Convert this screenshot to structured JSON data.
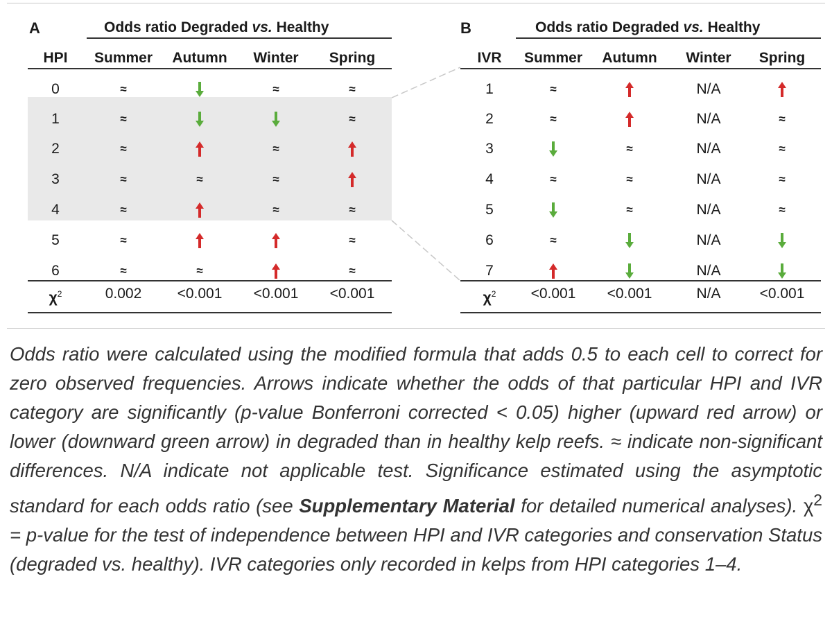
{
  "colors": {
    "up": "#d42a2a",
    "down": "#5aac3c",
    "grey_band": "#e9e9e9"
  },
  "panel_a": {
    "letter": "A",
    "title_pre": "Odds ratio Degraded ",
    "title_vs": "vs.",
    "title_post": " Healthy",
    "headers": [
      "HPI",
      "Summer",
      "Autumn",
      "Winter",
      "Spring"
    ],
    "rows": [
      {
        "label": "0",
        "values": [
          "≈",
          "down",
          "≈",
          "≈"
        ]
      },
      {
        "label": "1",
        "values": [
          "≈",
          "down",
          "down",
          "≈"
        ]
      },
      {
        "label": "2",
        "values": [
          "≈",
          "up",
          "≈",
          "up"
        ]
      },
      {
        "label": "3",
        "values": [
          "≈",
          "≈",
          "≈",
          "up"
        ]
      },
      {
        "label": "4",
        "values": [
          "≈",
          "up",
          "≈",
          "≈"
        ]
      },
      {
        "label": "5",
        "values": [
          "≈",
          "up",
          "up",
          "≈"
        ]
      },
      {
        "label": "6",
        "values": [
          "≈",
          "≈",
          "up",
          "≈"
        ]
      }
    ],
    "chi_label": "χ",
    "chi_sup": "2",
    "chi_values": [
      "0.002",
      "<0.001",
      "<0.001",
      "<0.001"
    ]
  },
  "panel_b": {
    "letter": "B",
    "title_pre": "Odds ratio Degraded ",
    "title_vs": "vs.",
    "title_post": " Healthy",
    "headers": [
      "IVR",
      "Summer",
      "Autumn",
      "Winter",
      "Spring"
    ],
    "rows": [
      {
        "label": "1",
        "values": [
          "≈",
          "up",
          "N/A",
          "up"
        ]
      },
      {
        "label": "2",
        "values": [
          "≈",
          "up",
          "N/A",
          "≈"
        ]
      },
      {
        "label": "3",
        "values": [
          "down",
          "≈",
          "N/A",
          "≈"
        ]
      },
      {
        "label": "4",
        "values": [
          "≈",
          "≈",
          "N/A",
          "≈"
        ]
      },
      {
        "label": "5",
        "values": [
          "down",
          "≈",
          "N/A",
          "≈"
        ]
      },
      {
        "label": "6",
        "values": [
          "≈",
          "down",
          "N/A",
          "down"
        ]
      },
      {
        "label": "7",
        "values": [
          "up",
          "down",
          "N/A",
          "down"
        ]
      }
    ],
    "chi_label": "χ",
    "chi_sup": "2",
    "chi_values": [
      "<0.001",
      "<0.001",
      "N/A",
      "<0.001"
    ]
  },
  "caption": {
    "p1": "Odds ratio were calculated using the modified formula that adds 0.5 to each cell to correct for zero observed frequencies. Arrows indicate whether the odds of that particular HPI and IVR category are significantly (p-value Bonferroni corrected < 0.05) higher (upward red arrow) or lower (downward green arrow) in degraded than in healthy kelp reefs. ≈ indicate non-significant differences. N/A indicate not applicable test. Significance estimated using the asymptotic standard for each odds ratio (see ",
    "bold": "Supplementary Material",
    "p2": " for detailed numerical analyses). ",
    "chi": "χ",
    "chi_sup": "2",
    "p3": " = p-value for the test of independence between HPI and IVR categories and conservation Status (degraded vs. healthy). IVR categories only recorded in kelps from HPI categories 1–4."
  }
}
